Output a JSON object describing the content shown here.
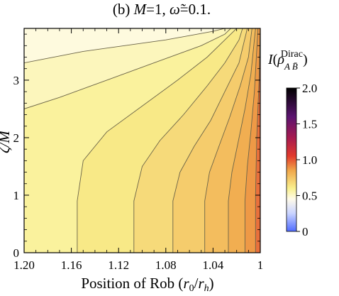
{
  "chart_data": {
    "type": "heatmap",
    "title": "(b) M=1, ω̃=0.1.",
    "xlabel": "Position of Rob (r0/rh)",
    "ylabel": "ζ/M",
    "x_ticks": [
      "1.20",
      "1.16",
      "1.12",
      "1.08",
      "1.04",
      "1"
    ],
    "x_tick_values": [
      1.2,
      1.16,
      1.12,
      1.08,
      1.04,
      1.0
    ],
    "y_ticks": [
      "0",
      "1",
      "2",
      "3"
    ],
    "y_tick_values": [
      0,
      1,
      2,
      3
    ],
    "xlim": [
      1.2,
      1.0
    ],
    "ylim": [
      0,
      3.9
    ],
    "x_reversed": true,
    "colorbar": {
      "title": "I(ρ^Dirac_AB̄)",
      "ticks": [
        "0",
        "0.5",
        "1.0",
        "1.5",
        "2.0"
      ],
      "tick_values": [
        0,
        0.5,
        1.0,
        1.5,
        2.0
      ],
      "range": [
        0,
        2.0
      ],
      "colors": [
        {
          "value": 0.0,
          "color": "#4f6bff"
        },
        {
          "value": 0.25,
          "color": "#c9d3ff"
        },
        {
          "value": 0.45,
          "color": "#fffbea"
        },
        {
          "value": 0.6,
          "color": "#f9f08e"
        },
        {
          "value": 0.85,
          "color": "#f0a74a"
        },
        {
          "value": 1.05,
          "color": "#e23a2c"
        },
        {
          "value": 1.3,
          "color": "#a81b4f"
        },
        {
          "value": 1.6,
          "color": "#5b1470"
        },
        {
          "value": 2.0,
          "color": "#000000"
        }
      ]
    },
    "contour_levels": [
      0.5,
      0.55,
      0.6,
      0.65,
      0.7,
      0.75,
      0.8,
      0.85,
      0.9
    ],
    "contour_lines": [
      {
        "level": 0.5,
        "points": [
          [
            1.2,
            3.3
          ],
          [
            1.15,
            3.5
          ],
          [
            1.08,
            3.7
          ],
          [
            1.04,
            3.85
          ],
          [
            1.03,
            3.9
          ]
        ]
      },
      {
        "level": 0.55,
        "points": [
          [
            1.2,
            2.5
          ],
          [
            1.17,
            2.7
          ],
          [
            1.13,
            3.0
          ],
          [
            1.09,
            3.3
          ],
          [
            1.05,
            3.6
          ],
          [
            1.03,
            3.8
          ],
          [
            1.025,
            3.9
          ]
        ]
      },
      {
        "level": 0.6,
        "points": [
          [
            1.155,
            0.0
          ],
          [
            1.155,
            0.9
          ],
          [
            1.15,
            1.6
          ],
          [
            1.13,
            2.1
          ],
          [
            1.1,
            2.55
          ],
          [
            1.07,
            3.0
          ],
          [
            1.045,
            3.4
          ],
          [
            1.025,
            3.8
          ],
          [
            1.02,
            3.9
          ]
        ]
      },
      {
        "level": 0.65,
        "points": [
          [
            1.107,
            0.0
          ],
          [
            1.107,
            0.9
          ],
          [
            1.1,
            1.5
          ],
          [
            1.085,
            1.95
          ],
          [
            1.065,
            2.4
          ],
          [
            1.045,
            2.9
          ],
          [
            1.03,
            3.3
          ],
          [
            1.018,
            3.7
          ],
          [
            1.015,
            3.9
          ]
        ]
      },
      {
        "level": 0.7,
        "points": [
          [
            1.074,
            0.0
          ],
          [
            1.074,
            0.9
          ],
          [
            1.068,
            1.4
          ],
          [
            1.056,
            1.85
          ],
          [
            1.042,
            2.3
          ],
          [
            1.03,
            2.8
          ],
          [
            1.018,
            3.3
          ],
          [
            1.011,
            3.9
          ]
        ]
      },
      {
        "level": 0.75,
        "points": [
          [
            1.047,
            0.0
          ],
          [
            1.047,
            0.9
          ],
          [
            1.043,
            1.4
          ],
          [
            1.035,
            1.85
          ],
          [
            1.026,
            2.35
          ],
          [
            1.017,
            2.9
          ],
          [
            1.01,
            3.4
          ],
          [
            1.007,
            3.9
          ]
        ]
      },
      {
        "level": 0.8,
        "points": [
          [
            1.027,
            0.0
          ],
          [
            1.027,
            0.9
          ],
          [
            1.024,
            1.4
          ],
          [
            1.019,
            1.9
          ],
          [
            1.013,
            2.5
          ],
          [
            1.008,
            3.1
          ],
          [
            1.004,
            3.9
          ]
        ]
      },
      {
        "level": 0.85,
        "points": [
          [
            1.013,
            0.0
          ],
          [
            1.013,
            0.9
          ],
          [
            1.011,
            1.5
          ],
          [
            1.008,
            2.1
          ],
          [
            1.005,
            2.8
          ],
          [
            1.002,
            3.9
          ]
        ]
      },
      {
        "level": 0.9,
        "points": [
          [
            1.004,
            0.0
          ],
          [
            1.004,
            1.0
          ],
          [
            1.003,
            2.0
          ],
          [
            1.001,
            3.0
          ],
          [
            1.0,
            3.9
          ]
        ]
      }
    ],
    "grid": false,
    "legend": "colorbar-right"
  }
}
